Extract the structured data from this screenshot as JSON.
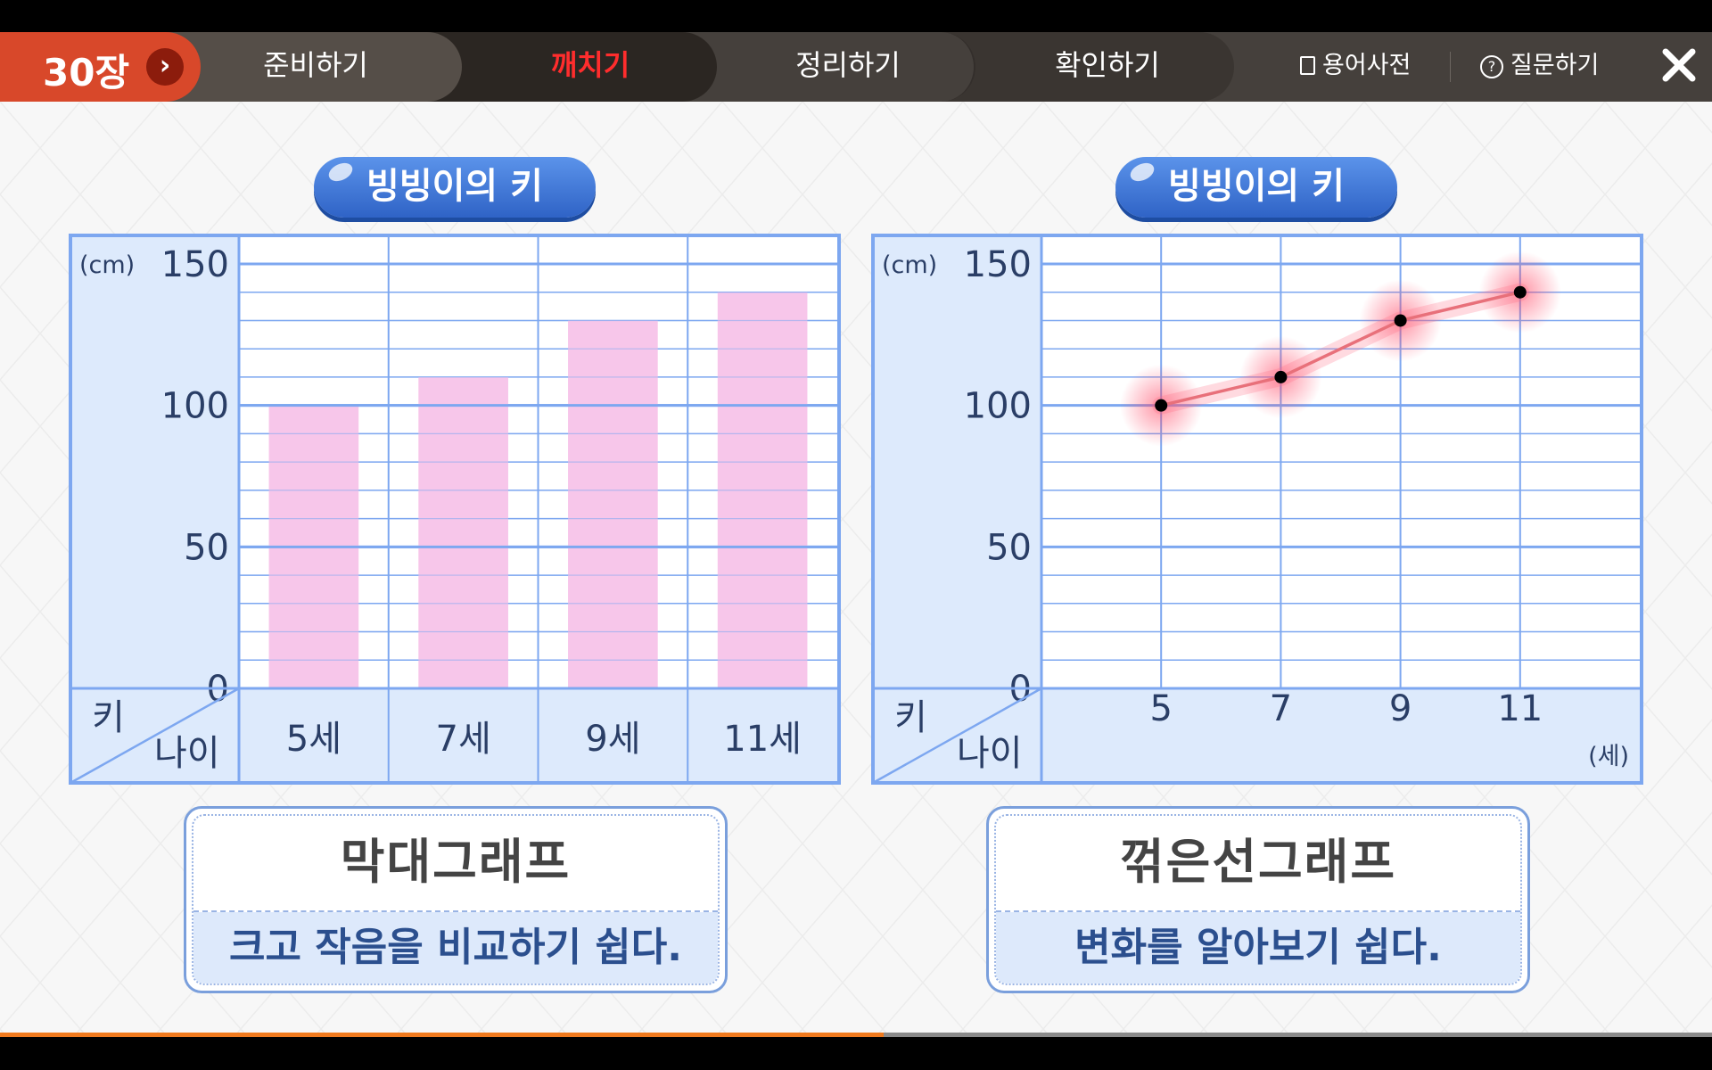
{
  "header": {
    "chapter": "30장",
    "tabs": [
      {
        "label": "준비하기",
        "active": false
      },
      {
        "label": "깨치기",
        "active": true
      },
      {
        "label": "정리하기",
        "active": false
      },
      {
        "label": "확인하기",
        "active": false
      }
    ],
    "dictionary_label": "용어사전",
    "question_label": "질문하기",
    "icons": {
      "chapter": "chevron-right-icon",
      "dictionary": "document-icon",
      "question": "question-icon",
      "close": "close-icon"
    }
  },
  "progress": {
    "fraction": 0.516
  },
  "colors": {
    "accent": "#d8482a",
    "active_tab": "#ff2d2d",
    "grid": "#7da7f0",
    "bar": "#f7c6ea",
    "line": "#e8707a",
    "progress": "#f07a1e"
  },
  "chart_data": [
    {
      "type": "bar",
      "title": "빙빙이의 키",
      "y_unit": "(cm)",
      "ylim": [
        0,
        150
      ],
      "y_ticks": [
        "0",
        "50",
        "100",
        "150"
      ],
      "categories": [
        "5세",
        "7세",
        "9세",
        "11세"
      ],
      "values": [
        100,
        110,
        130,
        140
      ],
      "corner_y": "키",
      "corner_x": "나이"
    },
    {
      "type": "line",
      "title": "빙빙이의 키",
      "y_unit": "(cm)",
      "x_unit": "(세)",
      "ylim": [
        0,
        150
      ],
      "y_ticks": [
        "0",
        "50",
        "100",
        "150"
      ],
      "x": [
        "5",
        "7",
        "9",
        "11"
      ],
      "values": [
        100,
        110,
        130,
        140
      ],
      "corner_y": "키",
      "corner_x": "나이"
    }
  ],
  "cards": [
    {
      "title": "막대그래프",
      "subtitle": "크고 작음을 비교하기 쉽다."
    },
    {
      "title": "꺾은선그래프",
      "subtitle": "변화를 알아보기 쉽다."
    }
  ]
}
